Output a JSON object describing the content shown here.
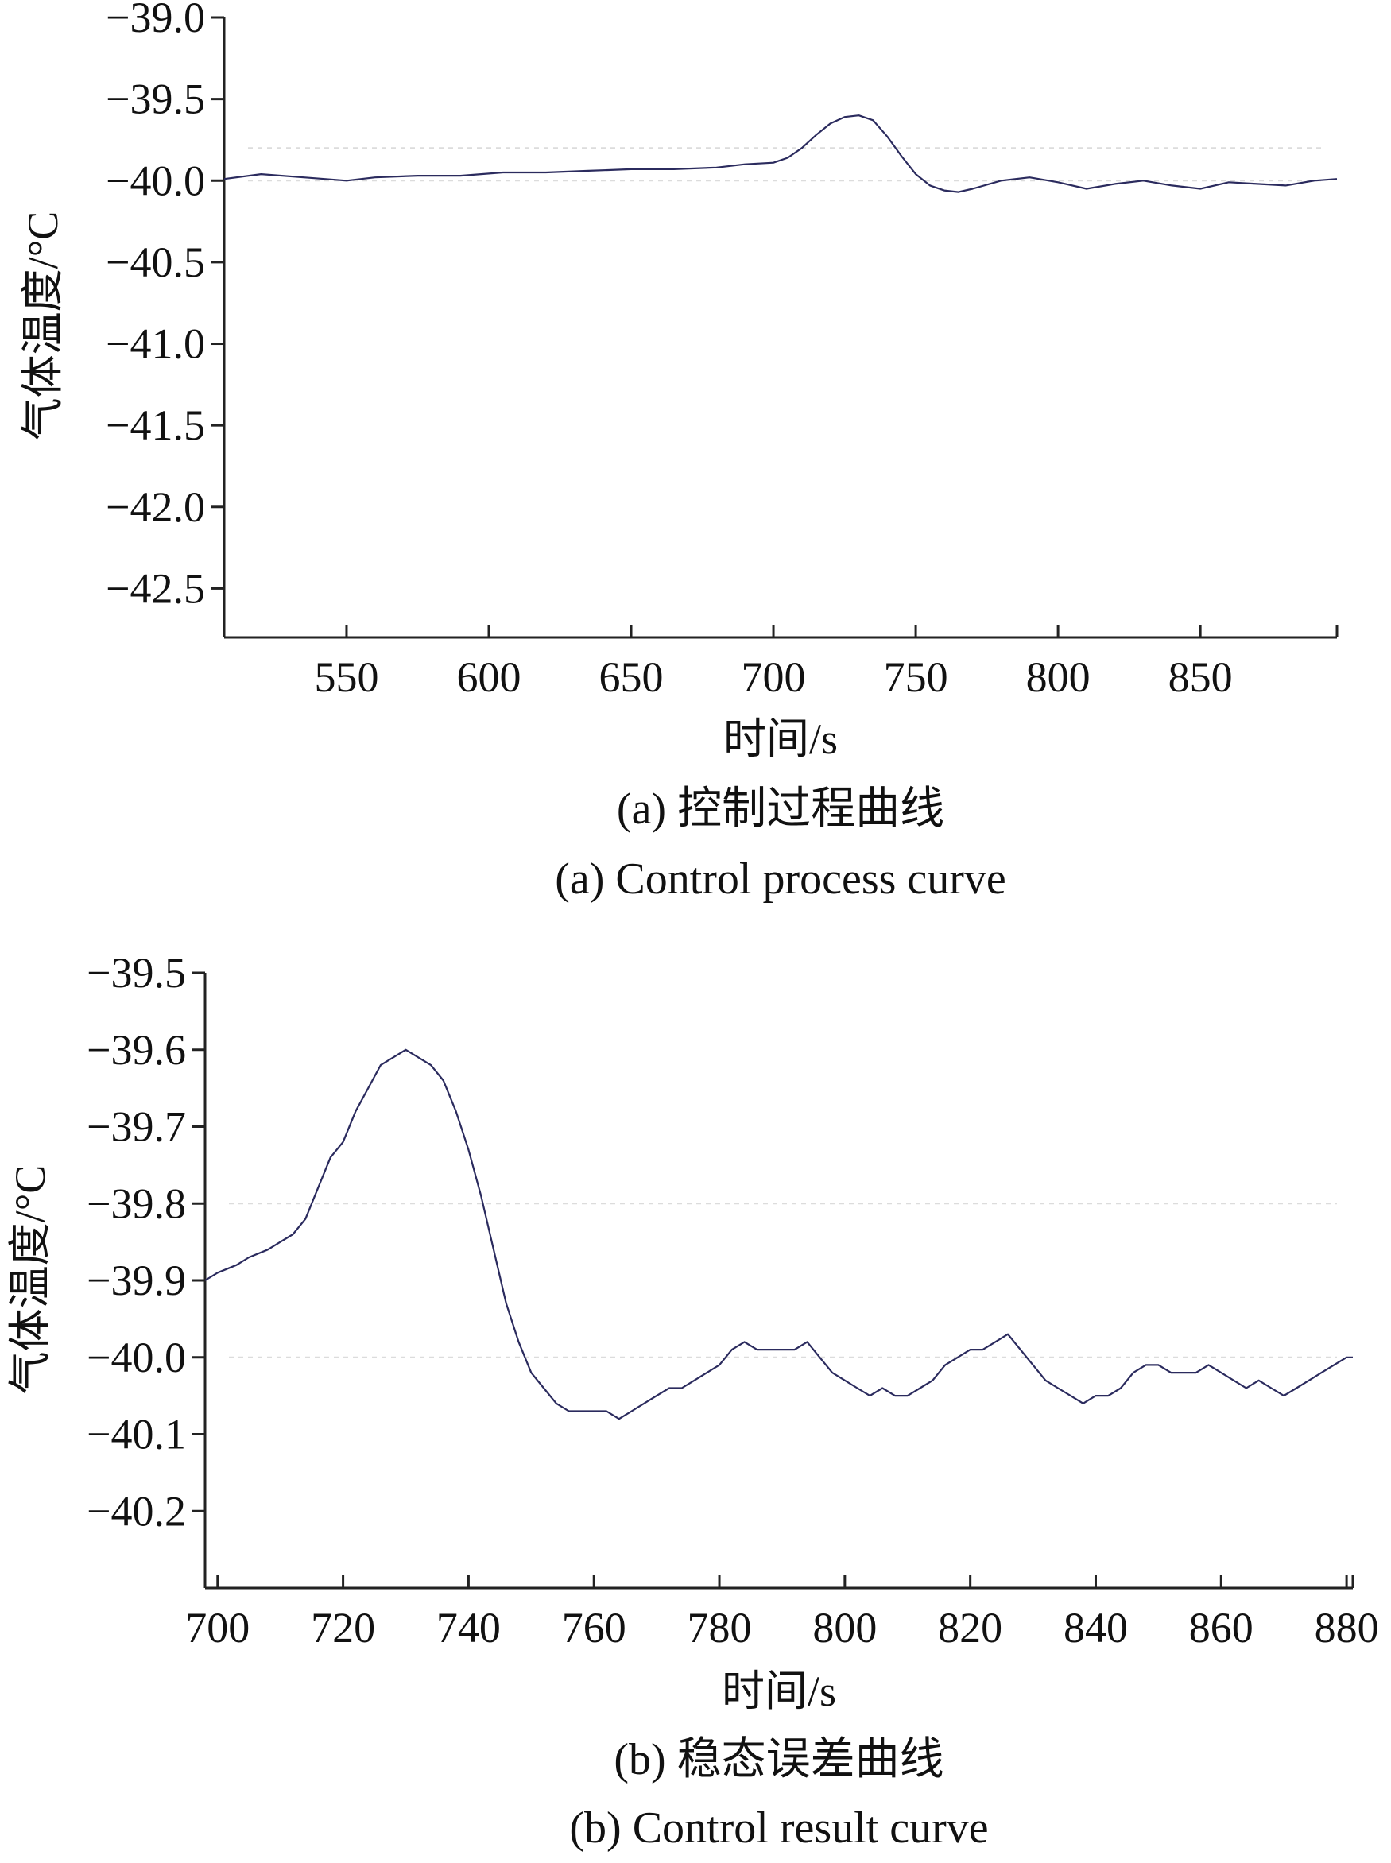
{
  "chart_data": [
    {
      "type": "line",
      "panel": "a",
      "xlabel": "时间/s",
      "ylabel": "气体温度/°C",
      "caption_cn": "(a) 控制过程曲线",
      "caption_en": "(a) Control process curve",
      "xlim": [
        507,
        898
      ],
      "ylim": [
        -42.8,
        -39.0
      ],
      "x_ticks": [
        550,
        600,
        650,
        700,
        750,
        800,
        850
      ],
      "x_tick_labels": [
        "550",
        "600",
        "650",
        "700",
        "750",
        "800",
        "850"
      ],
      "y_ticks": [
        -39.0,
        -39.5,
        -40.0,
        -40.5,
        -41.0,
        -41.5,
        -42.0,
        -42.5
      ],
      "y_tick_labels": [
        "−39.0",
        "−39.5",
        "−40.0",
        "−40.5",
        "−41.0",
        "−41.5",
        "−42.0",
        "−42.5"
      ],
      "grid": false,
      "series": [
        {
          "x": [
            507,
            520,
            535,
            550,
            560,
            575,
            590,
            605,
            620,
            635,
            650,
            665,
            680,
            690,
            700,
            705,
            710,
            715,
            720,
            725,
            730,
            735,
            740,
            745,
            750,
            755,
            760,
            765,
            770,
            780,
            790,
            800,
            810,
            820,
            830,
            840,
            850,
            860,
            870,
            880,
            890,
            898
          ],
          "y": [
            -39.99,
            -39.96,
            -39.98,
            -40.0,
            -39.98,
            -39.97,
            -39.97,
            -39.95,
            -39.95,
            -39.94,
            -39.93,
            -39.93,
            -39.92,
            -39.9,
            -39.89,
            -39.86,
            -39.8,
            -39.72,
            -39.65,
            -39.61,
            -39.6,
            -39.63,
            -39.73,
            -39.85,
            -39.96,
            -40.03,
            -40.06,
            -40.07,
            -40.05,
            -40.0,
            -39.98,
            -40.01,
            -40.05,
            -40.02,
            -40.0,
            -40.03,
            -40.05,
            -40.01,
            -40.02,
            -40.03,
            -40.0,
            -39.99
          ]
        }
      ]
    },
    {
      "type": "line",
      "panel": "b",
      "xlabel": "时间/s",
      "ylabel": "气体温度/°C",
      "caption_cn": "(b) 稳态误差曲线",
      "caption_en": "(b) Control result curve",
      "xlim": [
        698,
        881
      ],
      "ylim": [
        -40.3,
        -39.5
      ],
      "x_ticks": [
        700,
        720,
        740,
        760,
        780,
        800,
        820,
        840,
        860,
        880
      ],
      "x_tick_labels": [
        "700",
        "720",
        "740",
        "760",
        "780",
        "800",
        "820",
        "840",
        "860",
        "880"
      ],
      "y_ticks": [
        -39.5,
        -39.6,
        -39.7,
        -39.8,
        -39.9,
        -40.0,
        -40.1,
        -40.2
      ],
      "y_tick_labels": [
        "−39.5",
        "−39.6",
        "−39.7",
        "−39.8",
        "−39.9",
        "−40.0",
        "−40.1",
        "−40.2"
      ],
      "grid": false,
      "series": [
        {
          "x": [
            698,
            700,
            703,
            705,
            708,
            710,
            712,
            714,
            716,
            718,
            720,
            722,
            724,
            726,
            728,
            730,
            732,
            734,
            736,
            738,
            740,
            742,
            744,
            746,
            748,
            750,
            752,
            754,
            756,
            758,
            760,
            762,
            764,
            766,
            768,
            770,
            772,
            774,
            776,
            778,
            780,
            782,
            784,
            786,
            788,
            790,
            792,
            794,
            796,
            798,
            800,
            802,
            804,
            806,
            808,
            810,
            812,
            814,
            816,
            818,
            820,
            822,
            824,
            826,
            828,
            830,
            832,
            834,
            836,
            838,
            840,
            842,
            844,
            846,
            848,
            850,
            852,
            854,
            856,
            858,
            860,
            862,
            864,
            866,
            868,
            870,
            872,
            874,
            876,
            878,
            880,
            881
          ],
          "y": [
            -39.9,
            -39.89,
            -39.88,
            -39.87,
            -39.86,
            -39.85,
            -39.84,
            -39.82,
            -39.78,
            -39.74,
            -39.72,
            -39.68,
            -39.65,
            -39.62,
            -39.61,
            -39.6,
            -39.61,
            -39.62,
            -39.64,
            -39.68,
            -39.73,
            -39.79,
            -39.86,
            -39.93,
            -39.98,
            -40.02,
            -40.04,
            -40.06,
            -40.07,
            -40.07,
            -40.07,
            -40.07,
            -40.08,
            -40.07,
            -40.06,
            -40.05,
            -40.04,
            -40.04,
            -40.03,
            -40.02,
            -40.01,
            -39.99,
            -39.98,
            -39.99,
            -39.99,
            -39.99,
            -39.99,
            -39.98,
            -40.0,
            -40.02,
            -40.03,
            -40.04,
            -40.05,
            -40.04,
            -40.05,
            -40.05,
            -40.04,
            -40.03,
            -40.01,
            -40.0,
            -39.99,
            -39.99,
            -39.98,
            -39.97,
            -39.99,
            -40.01,
            -40.03,
            -40.04,
            -40.05,
            -40.06,
            -40.05,
            -40.05,
            -40.04,
            -40.02,
            -40.01,
            -40.01,
            -40.02,
            -40.02,
            -40.02,
            -40.01,
            -40.02,
            -40.03,
            -40.04,
            -40.03,
            -40.04,
            -40.05,
            -40.04,
            -40.03,
            -40.02,
            -40.01,
            -40.0,
            -40.0
          ]
        }
      ]
    }
  ]
}
